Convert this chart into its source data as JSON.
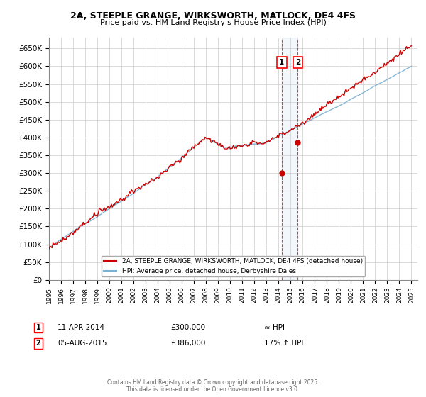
{
  "title1": "2A, STEEPLE GRANGE, WIRKSWORTH, MATLOCK, DE4 4FS",
  "title2": "Price paid vs. HM Land Registry's House Price Index (HPI)",
  "ylabel_ticks": [
    "£0",
    "£50K",
    "£100K",
    "£150K",
    "£200K",
    "£250K",
    "£300K",
    "£350K",
    "£400K",
    "£450K",
    "£500K",
    "£550K",
    "£600K",
    "£650K"
  ],
  "ytick_values": [
    0,
    50000,
    100000,
    150000,
    200000,
    250000,
    300000,
    350000,
    400000,
    450000,
    500000,
    550000,
    600000,
    650000
  ],
  "ylim": [
    0,
    680000
  ],
  "hpi_color": "#7ab0d4",
  "price_color": "#cc0000",
  "marker1_date": 2014.27,
  "marker2_date": 2015.59,
  "marker1_price": 300000,
  "marker2_price": 386000,
  "legend_line1": "2A, STEEPLE GRANGE, WIRKSWORTH, MATLOCK, DE4 4FS (detached house)",
  "legend_line2": "HPI: Average price, detached house, Derbyshire Dales",
  "annot1_text": "11-APR-2014",
  "annot1_price": "£300,000",
  "annot1_hpi": "≈ HPI",
  "annot2_text": "05-AUG-2015",
  "annot2_price": "£386,000",
  "annot2_hpi": "17% ↑ HPI",
  "footer": "Contains HM Land Registry data © Crown copyright and database right 2025.\nThis data is licensed under the Open Government Licence v3.0.",
  "bg_color": "#ffffff",
  "grid_color": "#cccccc",
  "shade_color": "#aaccee"
}
